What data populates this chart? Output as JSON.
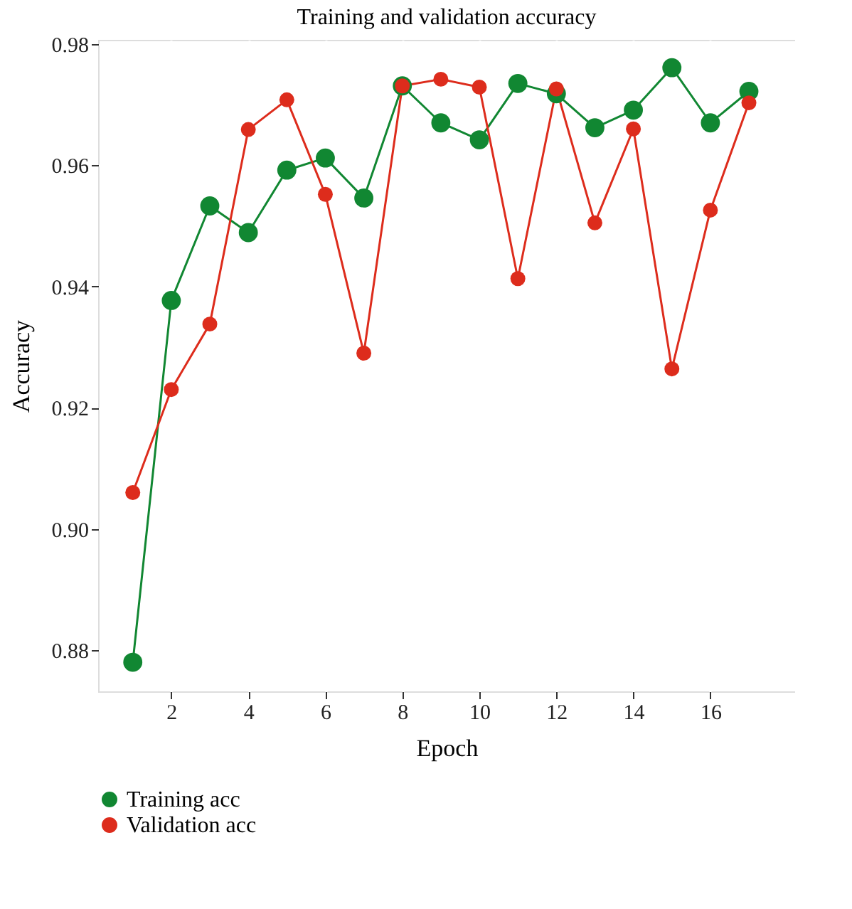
{
  "chart_data": {
    "type": "line",
    "title": "Training and validation accuracy",
    "xlabel": "Epoch",
    "ylabel": "Accuracy",
    "x": [
      1,
      2,
      3,
      4,
      5,
      6,
      7,
      8,
      9,
      10,
      11,
      12,
      13,
      14,
      15,
      16,
      17
    ],
    "series": [
      {
        "name": "Training acc",
        "color": "#118732",
        "values": [
          0.878,
          0.9377,
          0.9533,
          0.9489,
          0.9592,
          0.9612,
          0.9546,
          0.9731,
          0.967,
          0.9642,
          0.9735,
          0.9718,
          0.9662,
          0.9691,
          0.9761,
          0.967,
          0.9722
        ]
      },
      {
        "name": "Validation acc",
        "color": "#dd2c1c",
        "values": [
          0.906,
          0.923,
          0.9338,
          0.9659,
          0.9708,
          0.9552,
          0.929,
          0.9731,
          0.9742,
          0.9729,
          0.9413,
          0.9726,
          0.9505,
          0.966,
          0.9264,
          0.9526,
          0.9703
        ]
      }
    ],
    "xlim": [
      0.1,
      18.2
    ],
    "xticks": [
      2,
      4,
      6,
      8,
      10,
      12,
      14,
      16
    ],
    "ylim": [
      0.8732,
      0.9807
    ],
    "yticks": [
      {
        "value": 0.88,
        "label": "0.88"
      },
      {
        "value": 0.9,
        "label": "0.90"
      },
      {
        "value": 0.92,
        "label": "0.92"
      },
      {
        "value": 0.94,
        "label": "0.94"
      },
      {
        "value": 0.96,
        "label": "0.96"
      },
      {
        "value": 0.98,
        "label": "0.98"
      }
    ],
    "grid": true,
    "legend": "bottom left",
    "marker": "circle",
    "line_style": "solid"
  }
}
